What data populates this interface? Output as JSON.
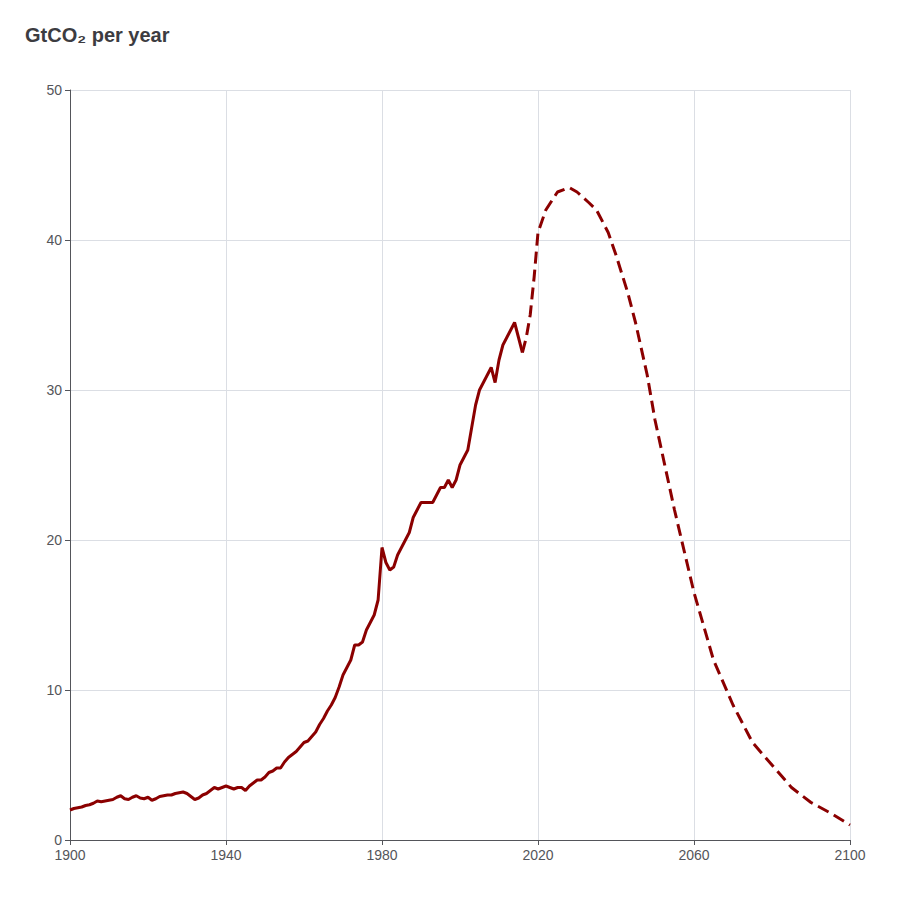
{
  "chart_data": {
    "type": "line",
    "title": "GtCO₂ per year",
    "xlim": [
      1900,
      2100
    ],
    "ylim": [
      0,
      50
    ],
    "xticks": [
      1900,
      1940,
      1980,
      2020,
      2060,
      2100
    ],
    "yticks": [
      0,
      10,
      20,
      30,
      40,
      50
    ],
    "grid": true,
    "series": [
      {
        "color": "#8B0000",
        "line_style": "solid",
        "x": [
          1900,
          1901,
          1902,
          1903,
          1904,
          1905,
          1906,
          1907,
          1908,
          1909,
          1910,
          1911,
          1912,
          1913,
          1914,
          1915,
          1916,
          1917,
          1918,
          1919,
          1920,
          1921,
          1922,
          1923,
          1924,
          1925,
          1926,
          1927,
          1928,
          1929,
          1930,
          1931,
          1932,
          1933,
          1934,
          1935,
          1936,
          1937,
          1938,
          1939,
          1940,
          1941,
          1942,
          1943,
          1944,
          1945,
          1946,
          1947,
          1948,
          1949,
          1950,
          1951,
          1952,
          1953,
          1954,
          1955,
          1956,
          1957,
          1958,
          1959,
          1960,
          1961,
          1962,
          1963,
          1964,
          1965,
          1966,
          1967,
          1968,
          1969,
          1970,
          1971,
          1972,
          1973,
          1974,
          1975,
          1976,
          1977,
          1978,
          1979,
          1980,
          1981,
          1982,
          1983,
          1984,
          1985,
          1986,
          1987,
          1988,
          1989,
          1990,
          1991,
          1992,
          1993,
          1994,
          1995,
          1996,
          1997,
          1998,
          1999,
          2000,
          2001,
          2002,
          2003,
          2004,
          2005,
          2006,
          2007,
          2008,
          2009,
          2010,
          2011,
          2012,
          2013,
          2014,
          2015,
          2016
        ],
        "values": [
          2.0,
          2.1,
          2.15,
          2.2,
          2.3,
          2.35,
          2.45,
          2.6,
          2.55,
          2.6,
          2.65,
          2.7,
          2.85,
          2.95,
          2.75,
          2.7,
          2.85,
          2.95,
          2.8,
          2.75,
          2.85,
          2.65,
          2.75,
          2.9,
          2.95,
          3.0,
          3.0,
          3.1,
          3.15,
          3.2,
          3.1,
          2.9,
          2.7,
          2.8,
          3.0,
          3.1,
          3.3,
          3.5,
          3.4,
          3.5,
          3.6,
          3.5,
          3.4,
          3.5,
          3.5,
          3.3,
          3.6,
          3.8,
          4.0,
          4.0,
          4.2,
          4.5,
          4.6,
          4.8,
          4.8,
          5.2,
          5.5,
          5.7,
          5.9,
          6.2,
          6.5,
          6.6,
          6.9,
          7.2,
          7.7,
          8.1,
          8.6,
          9.0,
          9.5,
          10.2,
          11.0,
          11.5,
          12.0,
          13.0,
          13.0,
          13.2,
          14.0,
          14.5,
          15.0,
          16.0,
          19.5,
          18.5,
          18.0,
          18.2,
          19.0,
          19.5,
          20.0,
          20.5,
          21.5,
          22.0,
          22.5,
          22.5,
          22.5,
          22.5,
          23.0,
          23.5,
          23.5,
          24.0,
          23.5,
          24.0,
          25.0,
          25.5,
          26.0,
          27.5,
          29.0,
          30.0,
          30.5,
          31.0,
          31.5,
          30.5,
          32.0,
          33.0,
          33.5,
          34.0,
          34.5,
          33.5,
          32.5
        ]
      },
      {
        "color": "#8B0000",
        "line_style": "dashed",
        "x": [
          2016,
          2017,
          2018,
          2019,
          2020,
          2022,
          2025,
          2028,
          2030,
          2033,
          2035,
          2038,
          2040,
          2043,
          2045,
          2048,
          2050,
          2055,
          2060,
          2065,
          2070,
          2075,
          2080,
          2085,
          2090,
          2095,
          2100
        ],
        "values": [
          32.5,
          33.5,
          35.0,
          37.5,
          40.5,
          42.0,
          43.2,
          43.5,
          43.2,
          42.5,
          42.0,
          40.5,
          39.0,
          36.5,
          34.5,
          31.0,
          28.0,
          22.0,
          16.5,
          12.0,
          9.0,
          6.5,
          5.0,
          3.5,
          2.5,
          1.8,
          1.0
        ]
      }
    ]
  }
}
